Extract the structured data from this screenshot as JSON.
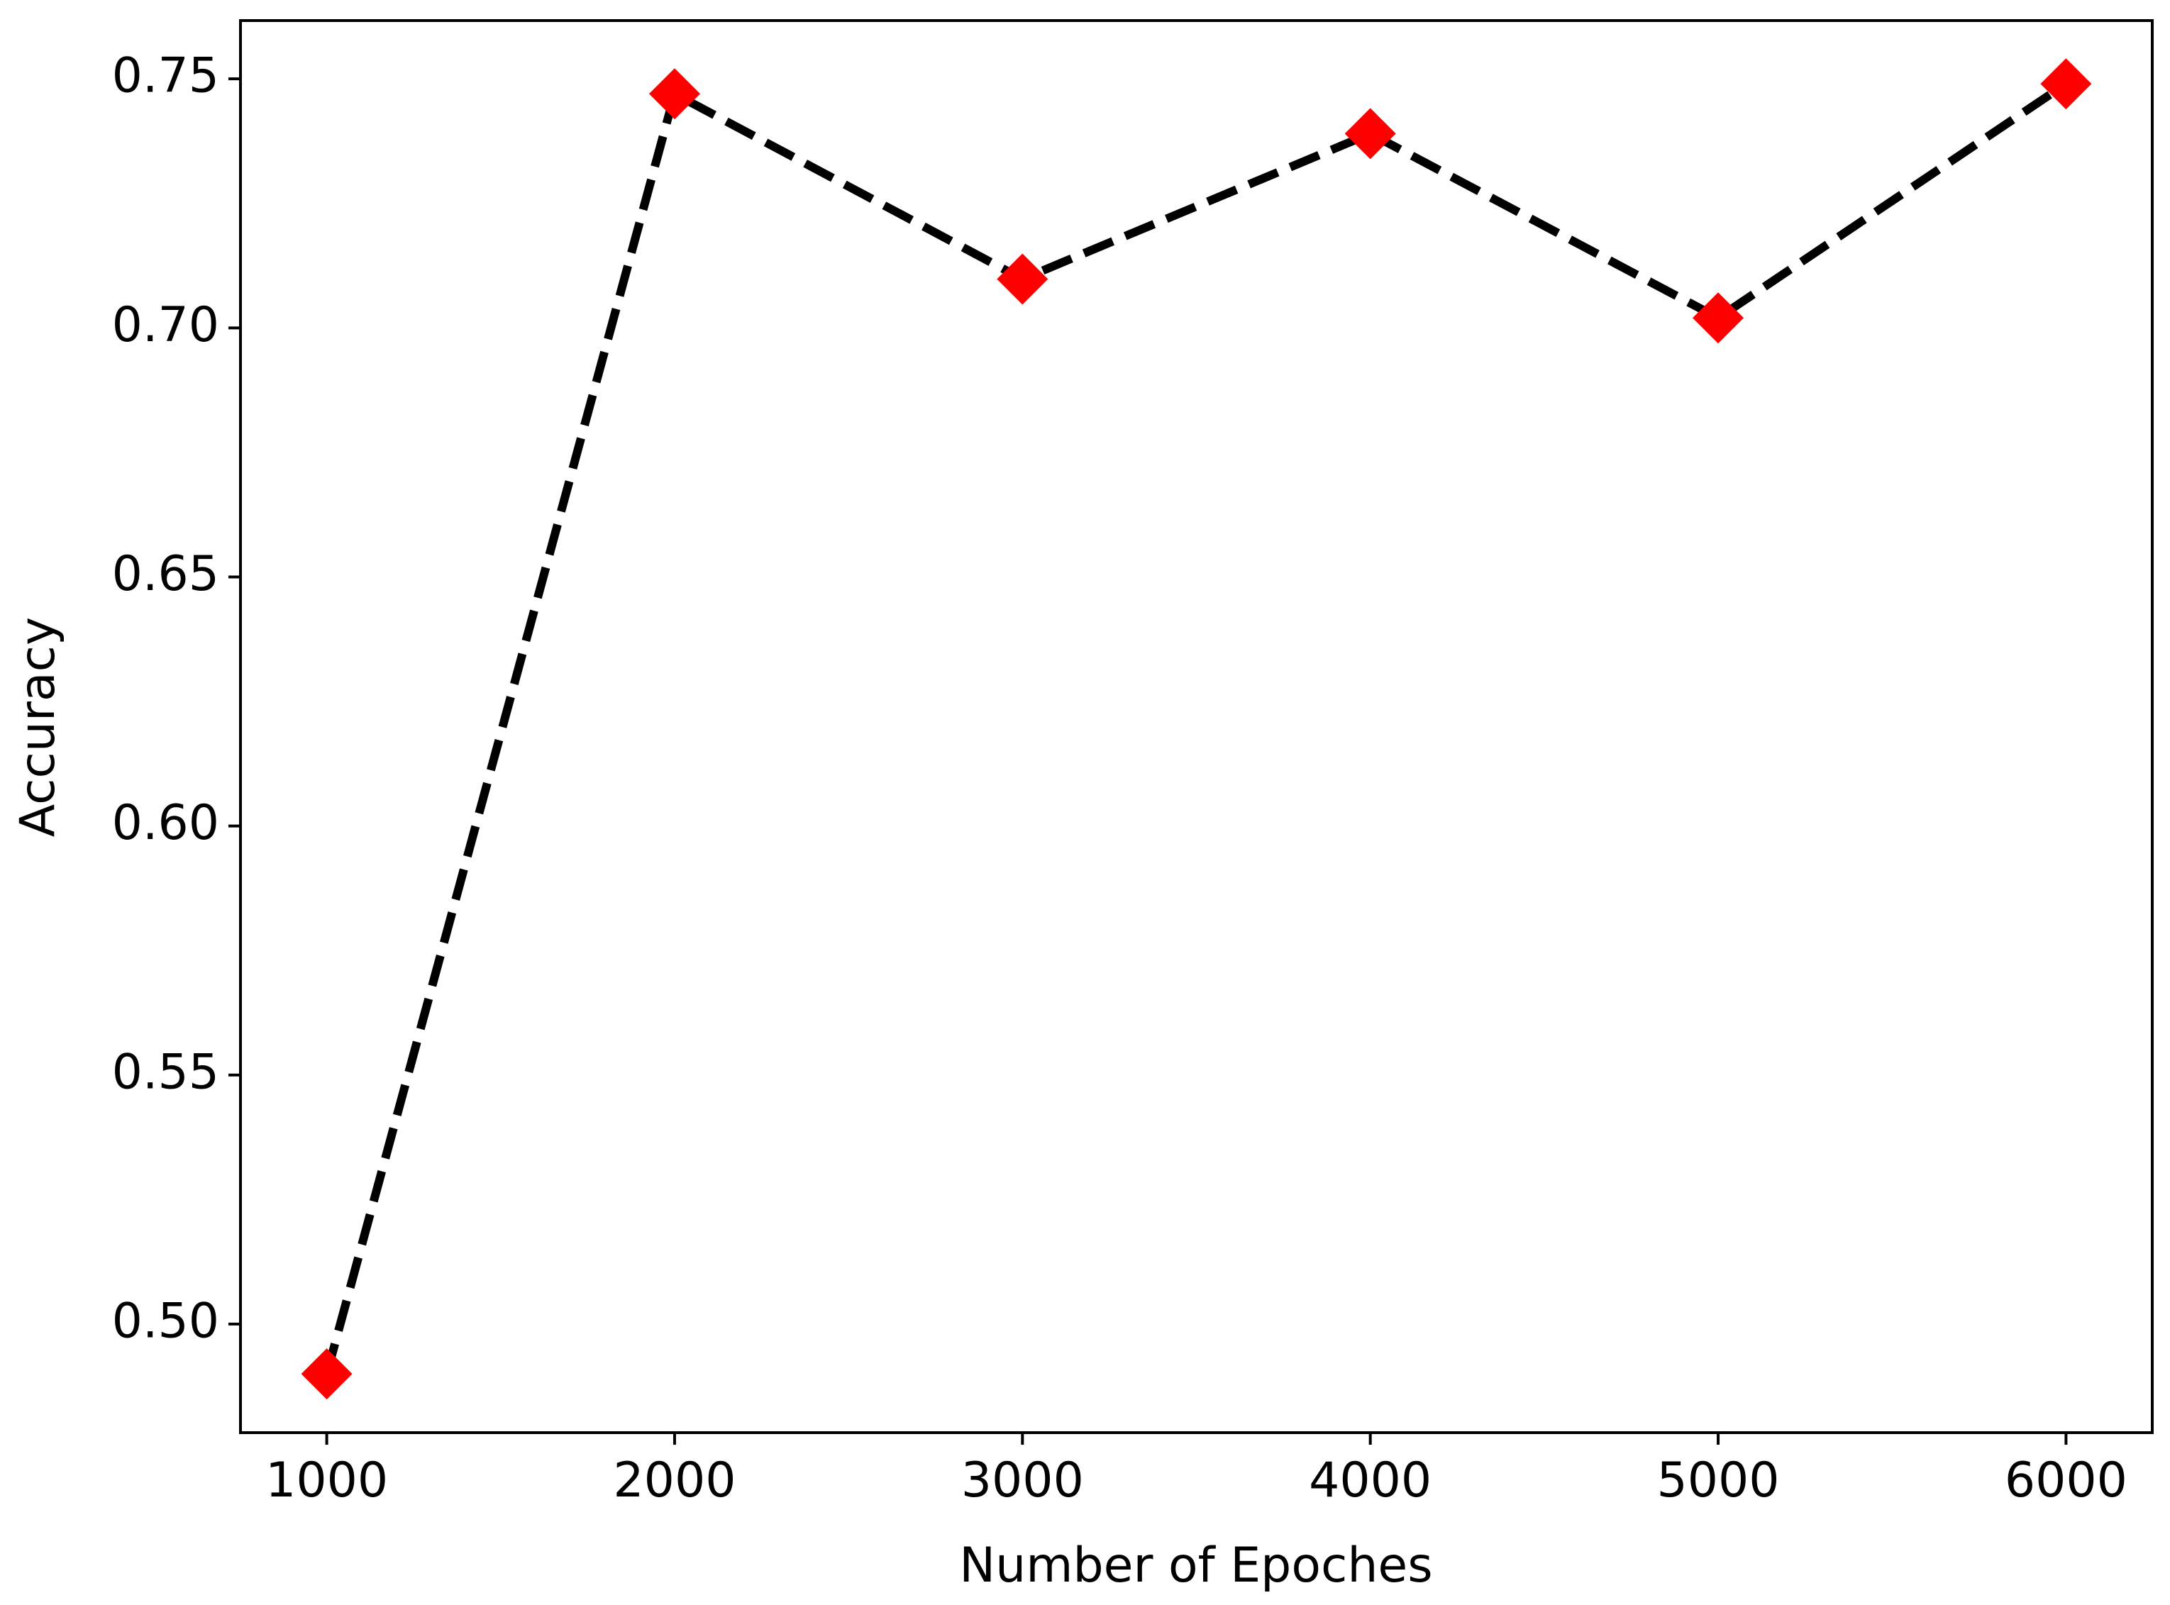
{
  "chart_data": {
    "type": "line",
    "x_label": "Number of Epoches",
    "y_label": "Accuracy",
    "x": [
      1000,
      2000,
      3000,
      4000,
      5000,
      6000
    ],
    "series": [
      {
        "color": "#000000",
        "marker_color": "#ff0000",
        "values": [
          0.49,
          0.747,
          0.7098,
          0.739,
          0.702,
          0.749
        ]
      }
    ],
    "xlim": [
      752,
      6248
    ],
    "xticks": [
      1000,
      2000,
      3000,
      4000,
      5000,
      6000
    ],
    "ylim": [
      0.4782,
      0.7617
    ],
    "yticks": [
      {
        "value": 0.5,
        "label": "0.50"
      },
      {
        "value": 0.55,
        "label": "0.55"
      },
      {
        "value": 0.6,
        "label": "0.60"
      },
      {
        "value": 0.65,
        "label": "0.65"
      },
      {
        "value": 0.7,
        "label": "0.70"
      },
      0.75
    ],
    "grid": false
  }
}
